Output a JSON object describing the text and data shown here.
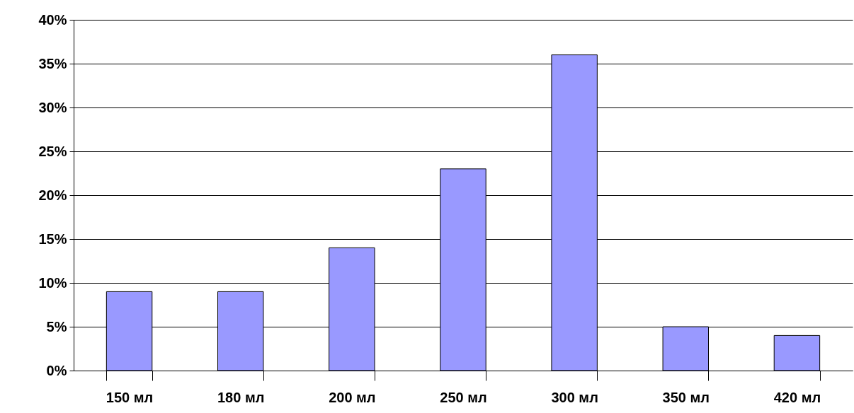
{
  "chart_data": {
    "type": "bar",
    "categories": [
      "150 мл",
      "180 мл",
      "200 мл",
      "250 мл",
      "300 мл",
      "350 мл",
      "420 мл"
    ],
    "values": [
      9,
      9,
      14,
      23,
      36,
      5,
      4
    ],
    "color": "#9999ff",
    "ylim": [
      0,
      40
    ],
    "yticks": [
      {
        "value": 0,
        "label": "0%"
      },
      {
        "value": 5,
        "label": "5%"
      },
      {
        "value": 10,
        "label": "10%"
      },
      {
        "value": 15,
        "label": "15%"
      },
      {
        "value": 20,
        "label": "20%"
      },
      {
        "value": 25,
        "label": "25%"
      },
      {
        "value": 30,
        "label": "30%"
      },
      {
        "value": 35,
        "label": "35%"
      },
      {
        "value": 40,
        "label": "40%"
      }
    ],
    "grid": "y"
  }
}
